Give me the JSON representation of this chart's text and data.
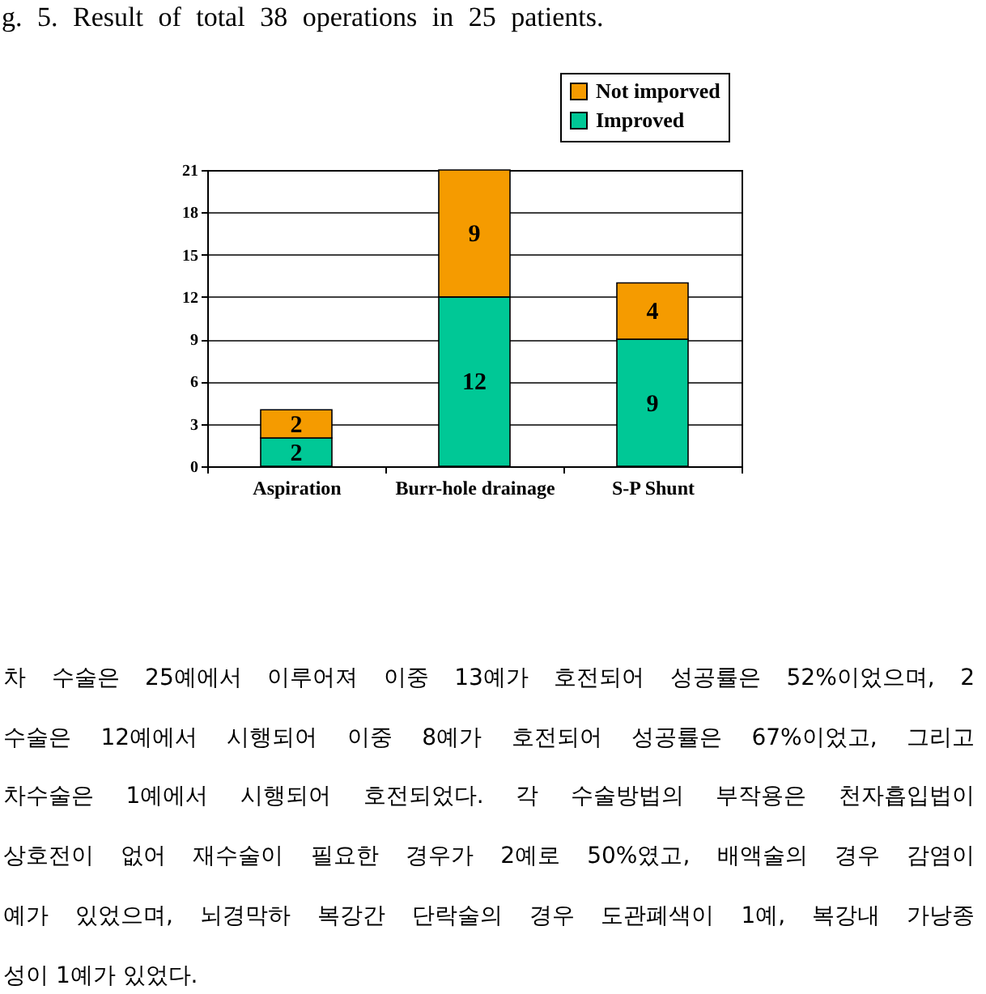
{
  "chart_data": {
    "type": "bar",
    "title": "g. 5. Result of total 38 operations in 25 patients.",
    "categories": [
      "Aspiration",
      "Burr-hole drainage",
      "S-P Shunt"
    ],
    "series": [
      {
        "name": "Improved",
        "color": "#00c896",
        "values": [
          2,
          12,
          9
        ]
      },
      {
        "name": "Not imporved",
        "color": "#f59b00",
        "values": [
          2,
          9,
          4
        ]
      }
    ],
    "stacked": true,
    "data_labels": true,
    "ylim": [
      0,
      21
    ],
    "yticks": [
      0,
      3,
      6,
      9,
      12,
      15,
      18,
      21
    ],
    "grid": "y",
    "legend": "top right",
    "annotations": [
      "차 수술은 25예에서 이루어져 이중 13예가 호전되어 성공률은 52%이었으며, 2",
      "수술은 12예에서 시행되어 이중 8예가 호전되어 성공률은 67%이었고, 그리고",
      "차수술은 1예에서 시행되어 호전되었다. 각 수술방법의 부작용은 천자흡입법이",
      "상호전이 없어 재수술이 필요한 경우가 2예로 50%였고, 배액술의 경우 감염이",
      "예가 있었으며, 뇌경막하 복강간 단락술의 경우 도관폐색이 1예, 복강내 가낭종",
      "성이 1예가 있었다."
    ]
  }
}
